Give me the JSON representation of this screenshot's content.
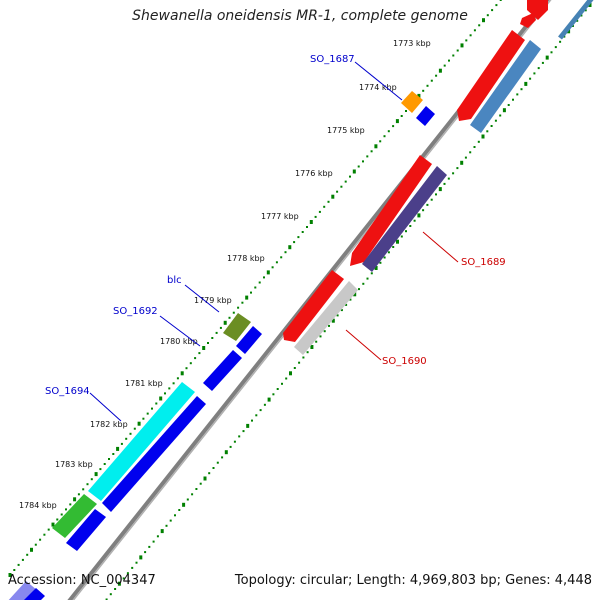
{
  "title": "Shewanella oneidensis MR-1, complete genome",
  "footer": {
    "accession": "Accession: NC_004347",
    "summary": "Topology: circular; Length: 4,969,803 bp; Genes: 4,448"
  },
  "ticks": [
    "1773 kbp",
    "1774 kbp",
    "1775 kbp",
    "1776 kbp",
    "1777 kbp",
    "1778 kbp",
    "1779 kbp",
    "1780 kbp",
    "1781 kbp",
    "1782 kbp",
    "1783 kbp",
    "1784 kbp"
  ],
  "gene_labels": [
    {
      "id": "label-so1687",
      "text": "SO_1687",
      "color": "#0000cc"
    },
    {
      "id": "label-blc",
      "text": "blc",
      "color": "#0000cc"
    },
    {
      "id": "label-so1692",
      "text": "SO_1692",
      "color": "#0000cc"
    },
    {
      "id": "label-so1694",
      "text": "SO_1694",
      "color": "#0000cc"
    },
    {
      "id": "label-so1689",
      "text": "SO_1689",
      "color": "#cc0000"
    },
    {
      "id": "label-so1690",
      "text": "SO_1690",
      "color": "#cc0000"
    }
  ],
  "colors": {
    "backbone": "#808080",
    "tick": "#008000",
    "forward_cds": "#0000ee",
    "reverse_cds": "#ee0000",
    "reverse_shadow_slate": "#4b3f8a",
    "reverse_shadow_steel": "#4682b4",
    "reverse_shadow_gray": "#c0c0c0",
    "orange_feature": "#ff9900",
    "olive_feature": "#6b8e23",
    "cyan_feature": "#00eeee",
    "green_feature": "#33bb33"
  }
}
